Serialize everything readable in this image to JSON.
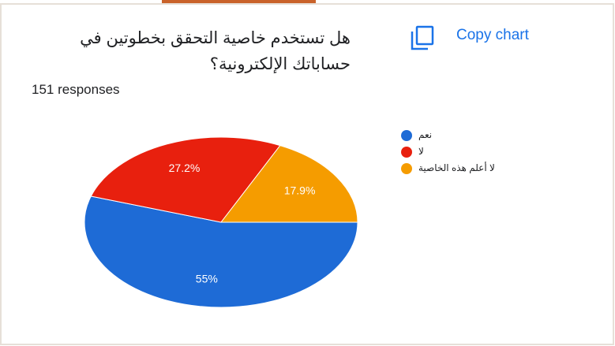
{
  "chart_data": {
    "type": "pie",
    "title": "هل تستخدم خاصية التحقق بخطوتين في حساباتك الإلكترونية؟",
    "subtitle": "151 responses",
    "button": "Copy chart",
    "categories": [
      "نعم",
      "لا",
      "لا أعلم هذه الخاصية"
    ],
    "values": [
      55,
      27.2,
      17.9
    ],
    "value_labels": [
      "55%",
      "27.2%",
      "17.9%"
    ],
    "colors": [
      "#1e6bd6",
      "#e8200e",
      "#f59c00"
    ],
    "legend": "right"
  }
}
